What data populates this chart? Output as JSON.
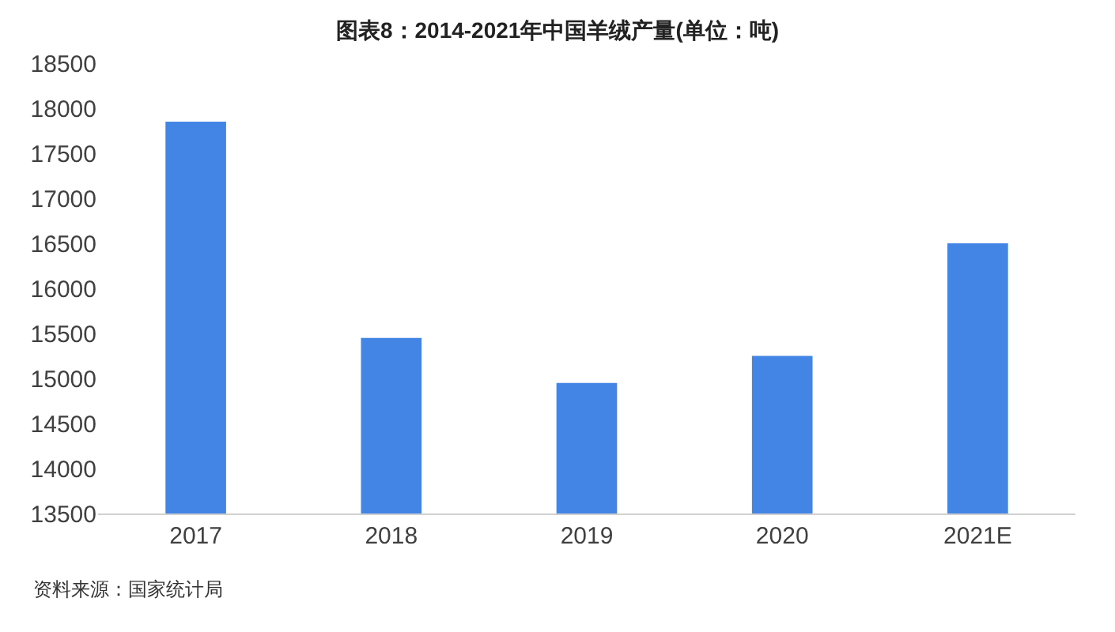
{
  "chart_data": {
    "type": "bar",
    "title": "图表8：2014-2021年中国羊绒产量(单位：吨)",
    "categories": [
      "2017",
      "2018",
      "2019",
      "2020",
      "2021E"
    ],
    "values": [
      17850,
      15450,
      14950,
      15250,
      16500
    ],
    "color": "#4285e4",
    "ylim": [
      13500,
      18500
    ],
    "yticks": [
      13500,
      14000,
      14500,
      15000,
      15500,
      16000,
      16500,
      17000,
      17500,
      18000,
      18500
    ],
    "grid": false,
    "annotations": [
      "资料来源：国家统计局"
    ]
  }
}
